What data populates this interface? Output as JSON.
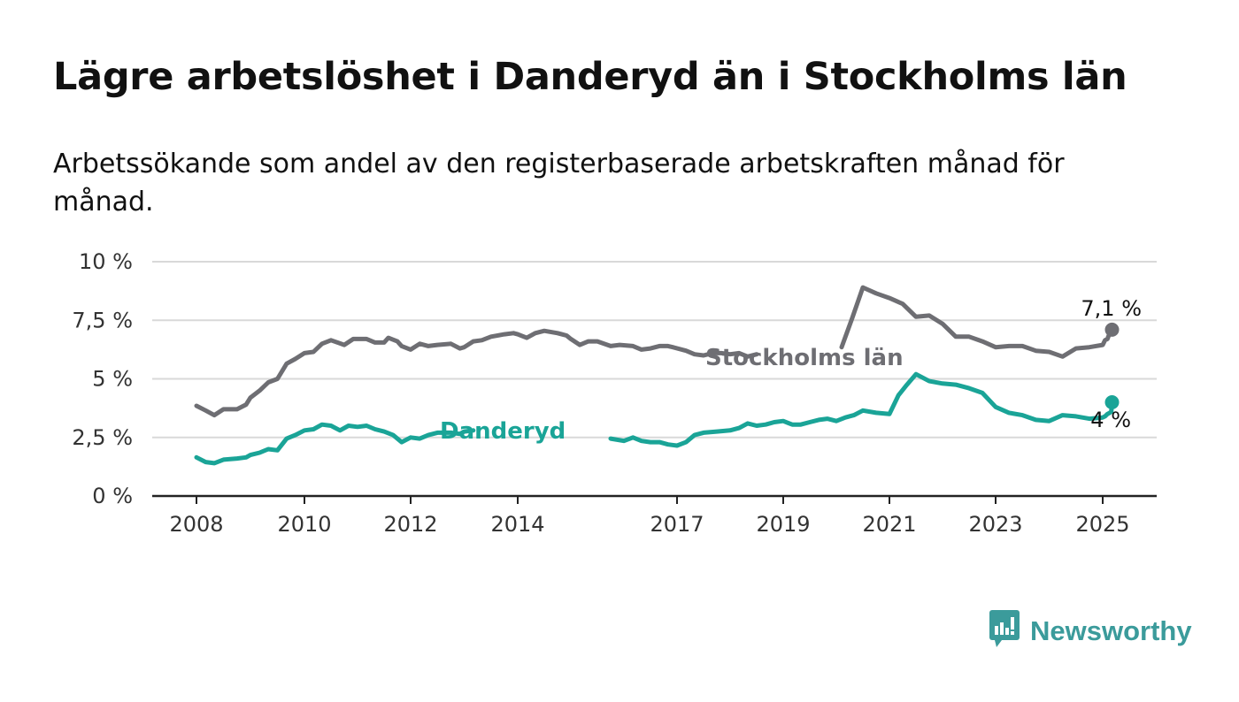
{
  "title": "Lägre arbetslöshet i Danderyd än i Stockholms län",
  "subtitle": "Arbetssökande som andel av den registerbaserade arbetskraften månad för månad.",
  "brand": {
    "name": "Newsworthy",
    "icon": "newsworthy-chart-logo-icon",
    "color": "#3b9b9b"
  },
  "chart_data": {
    "type": "line",
    "title": "Lägre arbetslöshet i Danderyd än i Stockholms län",
    "xlabel": "",
    "ylabel": "",
    "x_ticks": [
      2008,
      2010,
      2012,
      2014,
      2017,
      2019,
      2021,
      2023,
      2025
    ],
    "y_ticks": [
      {
        "value": 0,
        "label": "0 %"
      },
      {
        "value": 2.5,
        "label": "2,5 %"
      },
      {
        "value": 5,
        "label": "5 %"
      },
      {
        "value": 7.5,
        "label": "7,5 %"
      },
      {
        "value": 10,
        "label": "10 %"
      }
    ],
    "xlim": [
      2007.5,
      2026.1
    ],
    "ylim": [
      0,
      10
    ],
    "grid": "horizontal",
    "series": [
      {
        "name": "Stockholms län",
        "color": "#6e6e73",
        "end_label": "7,1 %",
        "points": [
          [
            2008.0,
            3.85
          ],
          [
            2008.17,
            3.65
          ],
          [
            2008.33,
            3.45
          ],
          [
            2008.5,
            3.7
          ],
          [
            2008.75,
            3.7
          ],
          [
            2008.92,
            3.9
          ],
          [
            2009.0,
            4.2
          ],
          [
            2009.17,
            4.5
          ],
          [
            2009.33,
            4.85
          ],
          [
            2009.5,
            5.0
          ],
          [
            2009.67,
            5.65
          ],
          [
            2009.83,
            5.85
          ],
          [
            2010.0,
            6.1
          ],
          [
            2010.17,
            6.15
          ],
          [
            2010.33,
            6.5
          ],
          [
            2010.5,
            6.65
          ],
          [
            2010.75,
            6.45
          ],
          [
            2010.92,
            6.7
          ],
          [
            2011.17,
            6.7
          ],
          [
            2011.33,
            6.55
          ],
          [
            2011.5,
            6.55
          ],
          [
            2011.58,
            6.75
          ],
          [
            2011.75,
            6.6
          ],
          [
            2011.83,
            6.4
          ],
          [
            2012.0,
            6.25
          ],
          [
            2012.17,
            6.5
          ],
          [
            2012.33,
            6.4
          ],
          [
            2012.5,
            6.45
          ],
          [
            2012.75,
            6.5
          ],
          [
            2012.92,
            6.3
          ],
          [
            2013.0,
            6.35
          ],
          [
            2013.17,
            6.6
          ],
          [
            2013.33,
            6.65
          ],
          [
            2013.5,
            6.8
          ],
          [
            2013.75,
            6.9
          ],
          [
            2013.92,
            6.95
          ],
          [
            2014.0,
            6.9
          ],
          [
            2014.17,
            6.75
          ],
          [
            2014.33,
            6.95
          ],
          [
            2014.5,
            7.05
          ],
          [
            2014.75,
            6.95
          ],
          [
            2014.92,
            6.85
          ],
          [
            2015.0,
            6.7
          ],
          [
            2015.17,
            6.45
          ],
          [
            2015.33,
            6.6
          ],
          [
            2015.5,
            6.6
          ],
          [
            2015.75,
            6.4
          ],
          [
            2015.92,
            6.45
          ],
          [
            2016.17,
            6.4
          ],
          [
            2016.33,
            6.25
          ],
          [
            2016.5,
            6.3
          ],
          [
            2016.67,
            6.4
          ],
          [
            2016.83,
            6.4
          ],
          [
            2016.92,
            6.35
          ],
          [
            2017.17,
            6.2
          ],
          [
            2017.33,
            6.05
          ],
          [
            2017.5,
            6.0
          ],
          [
            2017.67,
            6.1
          ],
          [
            2017.83,
            6.1
          ],
          [
            2018.0,
            6.05
          ],
          [
            2018.17,
            6.1
          ],
          [
            2018.33,
            5.95
          ],
          [
            2018.5,
            6.05
          ],
          null,
          [
            2020.1,
            6.35
          ],
          [
            2020.3,
            7.6
          ],
          [
            2020.5,
            8.9
          ],
          [
            2020.75,
            8.65
          ],
          [
            2021.0,
            8.45
          ],
          [
            2021.25,
            8.2
          ],
          [
            2021.5,
            7.65
          ],
          [
            2021.75,
            7.7
          ],
          [
            2022.0,
            7.35
          ],
          [
            2022.25,
            6.8
          ],
          [
            2022.5,
            6.8
          ],
          [
            2022.75,
            6.6
          ],
          [
            2023.0,
            6.35
          ],
          [
            2023.25,
            6.4
          ],
          [
            2023.5,
            6.4
          ],
          [
            2023.75,
            6.2
          ],
          [
            2024.0,
            6.15
          ],
          [
            2024.25,
            5.95
          ],
          [
            2024.5,
            6.3
          ],
          [
            2024.75,
            6.35
          ],
          [
            2025.0,
            6.45
          ],
          [
            2025.25,
            6.65
          ],
          [
            2025.5,
            6.7
          ],
          [
            2025.75,
            6.95
          ],
          [
            2026.0,
            7.1
          ]
        ]
      },
      {
        "name": "Danderyd",
        "color": "#1aa497",
        "end_label": "4 %",
        "points": [
          [
            2008.0,
            1.65
          ],
          [
            2008.17,
            1.45
          ],
          [
            2008.33,
            1.4
          ],
          [
            2008.5,
            1.55
          ],
          [
            2008.75,
            1.6
          ],
          [
            2008.92,
            1.65
          ],
          [
            2009.0,
            1.75
          ],
          [
            2009.17,
            1.85
          ],
          [
            2009.33,
            2.0
          ],
          [
            2009.5,
            1.95
          ],
          [
            2009.67,
            2.45
          ],
          [
            2009.83,
            2.6
          ],
          [
            2010.0,
            2.8
          ],
          [
            2010.17,
            2.85
          ],
          [
            2010.33,
            3.05
          ],
          [
            2010.5,
            3.0
          ],
          [
            2010.67,
            2.8
          ],
          [
            2010.83,
            3.0
          ],
          [
            2011.0,
            2.95
          ],
          [
            2011.17,
            3.0
          ],
          [
            2011.33,
            2.85
          ],
          [
            2011.5,
            2.75
          ],
          [
            2011.67,
            2.6
          ],
          [
            2011.83,
            2.3
          ],
          [
            2012.0,
            2.5
          ],
          [
            2012.17,
            2.45
          ],
          [
            2012.33,
            2.6
          ],
          [
            2012.5,
            2.7
          ],
          [
            2012.75,
            2.7
          ],
          [
            2012.92,
            2.65
          ],
          [
            2013.0,
            2.75
          ],
          [
            2013.17,
            2.8
          ],
          null,
          [
            2015.75,
            2.45
          ],
          [
            2016.0,
            2.35
          ],
          [
            2016.17,
            2.5
          ],
          [
            2016.33,
            2.35
          ],
          [
            2016.5,
            2.3
          ],
          [
            2016.67,
            2.3
          ],
          [
            2016.83,
            2.2
          ],
          [
            2017.0,
            2.15
          ],
          [
            2017.17,
            2.3
          ],
          [
            2017.33,
            2.6
          ],
          [
            2017.5,
            2.7
          ],
          [
            2017.75,
            2.75
          ],
          [
            2018.0,
            2.8
          ],
          [
            2018.17,
            2.9
          ],
          [
            2018.33,
            3.1
          ],
          [
            2018.5,
            3.0
          ],
          [
            2018.67,
            3.05
          ],
          [
            2018.83,
            3.15
          ],
          [
            2019.0,
            3.2
          ],
          [
            2019.17,
            3.05
          ],
          [
            2019.33,
            3.05
          ],
          [
            2019.5,
            3.15
          ],
          [
            2019.67,
            3.25
          ],
          [
            2019.83,
            3.3
          ],
          [
            2020.0,
            3.2
          ],
          [
            2020.17,
            3.35
          ],
          [
            2020.33,
            3.45
          ],
          [
            2020.5,
            3.65
          ],
          [
            2020.75,
            3.55
          ],
          [
            2021.0,
            3.5
          ],
          [
            2021.17,
            4.3
          ],
          [
            2021.33,
            4.75
          ],
          [
            2021.5,
            5.2
          ],
          [
            2021.75,
            4.9
          ],
          [
            2022.0,
            4.8
          ],
          [
            2022.25,
            4.75
          ],
          [
            2022.5,
            4.6
          ],
          [
            2022.75,
            4.4
          ],
          [
            2023.0,
            3.8
          ],
          [
            2023.25,
            3.55
          ],
          [
            2023.5,
            3.45
          ],
          [
            2023.75,
            3.25
          ],
          [
            2024.0,
            3.2
          ],
          [
            2024.25,
            3.45
          ],
          [
            2024.5,
            3.4
          ],
          [
            2024.75,
            3.3
          ],
          [
            2025.0,
            3.35
          ],
          [
            2025.25,
            3.4
          ],
          [
            2025.5,
            3.5
          ],
          [
            2025.75,
            3.55
          ],
          [
            2025.92,
            3.6
          ],
          [
            2026.0,
            4.0
          ]
        ]
      }
    ]
  }
}
